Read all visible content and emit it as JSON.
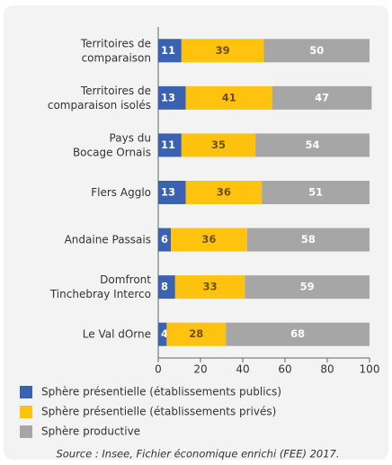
{
  "chart_data": {
    "type": "stacked_barh",
    "categories": [
      "Territoires de\ncomparaison",
      "Territoires de\ncomparaison isolés",
      "Pays du\nBocage Ornais",
      "Flers Agglo",
      "Andaine Passais",
      "Domfront\nTinchebray Interco",
      "Le Val dOrne"
    ],
    "series": [
      {
        "name": "Sphère présentielle (établissements publics)",
        "color": "#3a62b0",
        "values": [
          11,
          13,
          11,
          13,
          6,
          8,
          4
        ]
      },
      {
        "name": "Sphère présentielle (établissements privés)",
        "color": "#ffc20e",
        "values": [
          39,
          41,
          35,
          36,
          36,
          33,
          28
        ]
      },
      {
        "name": "Sphère productive",
        "color": "#a6a6a6",
        "values": [
          50,
          47,
          54,
          51,
          58,
          59,
          68
        ]
      }
    ],
    "xlim": [
      0,
      100
    ],
    "xticks": [
      0,
      20,
      40,
      60,
      80,
      100
    ],
    "legend": "bottom-left",
    "source": "Source : Insee, Fichier économique enrichi (FEE) 2017."
  }
}
